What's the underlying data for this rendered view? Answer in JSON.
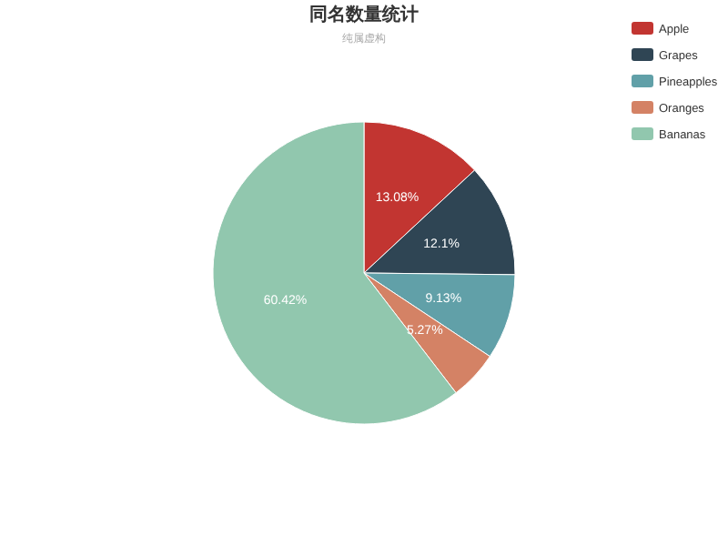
{
  "chart_data": {
    "type": "pie",
    "title": "同名数量统计",
    "subtitle": "纯属虚构",
    "categories": [
      "Apple",
      "Grapes",
      "Pineapples",
      "Oranges",
      "Bananas"
    ],
    "values": [
      13.08,
      12.1,
      9.13,
      5.27,
      60.42
    ],
    "value_labels": [
      "13.08%",
      "12.1%",
      "9.13%",
      "5.27%",
      "60.42%"
    ],
    "colors": [
      "#c23531",
      "#2f4554",
      "#61a0a8",
      "#d48265",
      "#91c7ae"
    ],
    "legend": "top right"
  }
}
